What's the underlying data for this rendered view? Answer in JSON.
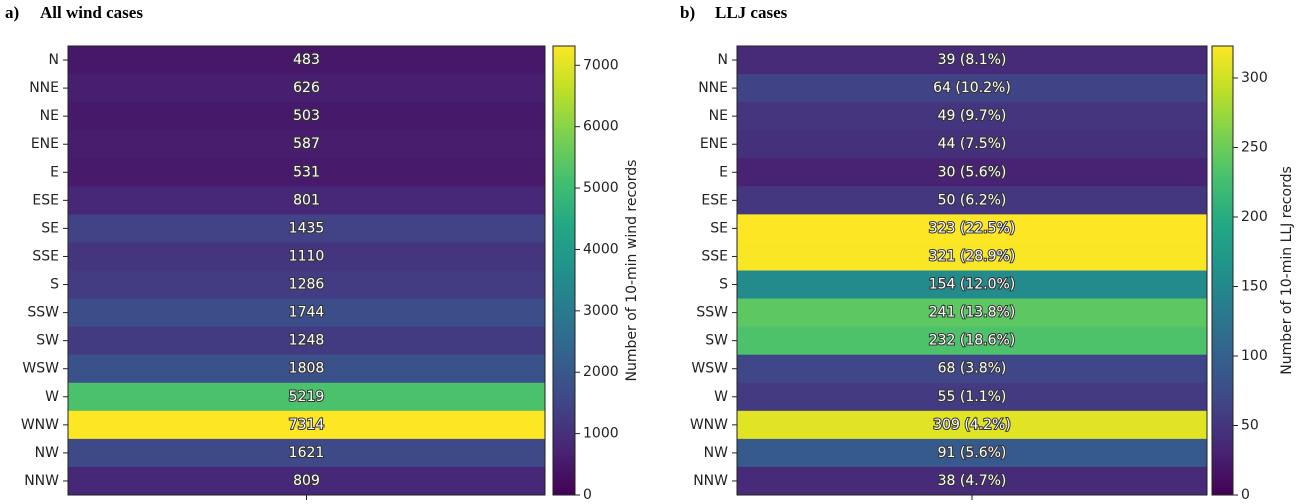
{
  "chart_data": [
    {
      "type": "heatmap",
      "panel_label": "a)",
      "title": "All wind cases",
      "categories": [
        "N",
        "NNE",
        "NE",
        "ENE",
        "E",
        "ESE",
        "SE",
        "SSE",
        "S",
        "SSW",
        "SW",
        "WSW",
        "W",
        "WNW",
        "NW",
        "NNW"
      ],
      "values": [
        483,
        626,
        503,
        587,
        531,
        801,
        1435,
        1110,
        1286,
        1744,
        1248,
        1808,
        5219,
        7314,
        1621,
        809
      ],
      "colormap": "viridis",
      "zlim": [
        0,
        7314
      ],
      "zticks": [
        0,
        1000,
        2000,
        3000,
        4000,
        5000,
        6000,
        7000
      ],
      "colorbar_label": "Number of 10-min wind records"
    },
    {
      "type": "heatmap",
      "panel_label": "b)",
      "title": "LLJ cases",
      "categories": [
        "N",
        "NNE",
        "NE",
        "ENE",
        "E",
        "ESE",
        "SE",
        "SSE",
        "S",
        "SSW",
        "SW",
        "WSW",
        "W",
        "WNW",
        "NW",
        "NNW"
      ],
      "values": [
        39,
        64,
        49,
        44,
        30,
        50,
        323,
        321,
        154,
        241,
        232,
        68,
        55,
        309,
        91,
        38
      ],
      "value_labels": [
        "39 (8.1%)",
        "64 (10.2%)",
        "49 (9.7%)",
        "44 (7.5%)",
        "30 (5.6%)",
        "50 (6.2%)",
        "323 (22.5%)",
        "321 (28.9%)",
        "154 (12.0%)",
        "241 (13.8%)",
        "232 (18.6%)",
        "68 (3.8%)",
        "55 (1.1%)",
        "309 (4.2%)",
        "91 (5.6%)",
        "38 (4.7%)"
      ],
      "colormap": "viridis",
      "zlim": [
        0,
        323
      ],
      "zticks": [
        0,
        50,
        100,
        150,
        200,
        250,
        300
      ],
      "colorbar_label": "Number of 10-min LLJ records"
    }
  ]
}
